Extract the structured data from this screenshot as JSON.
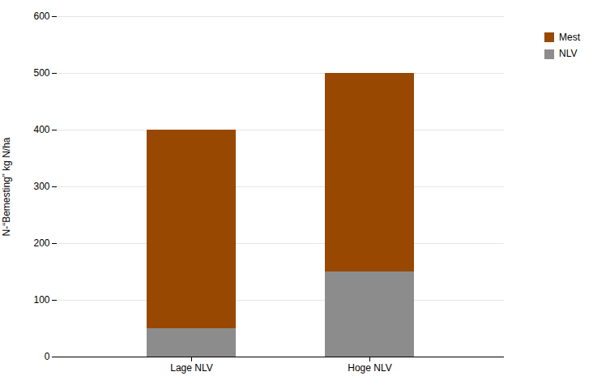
{
  "chart_data": {
    "type": "bar",
    "stacked": true,
    "categories": [
      "Lage NLV",
      "Hoge NLV"
    ],
    "series": [
      {
        "name": "NLV",
        "color": "#8c8c8c",
        "values": [
          50,
          150
        ]
      },
      {
        "name": "Mest",
        "color": "#984800",
        "values": [
          350,
          350
        ]
      }
    ],
    "ylabel": "N-“Bemesting” kg N/ha",
    "ylim": [
      0,
      600
    ],
    "yticks": [
      0,
      100,
      200,
      300,
      400,
      500,
      600
    ],
    "grid": true,
    "legend": "upper right"
  }
}
